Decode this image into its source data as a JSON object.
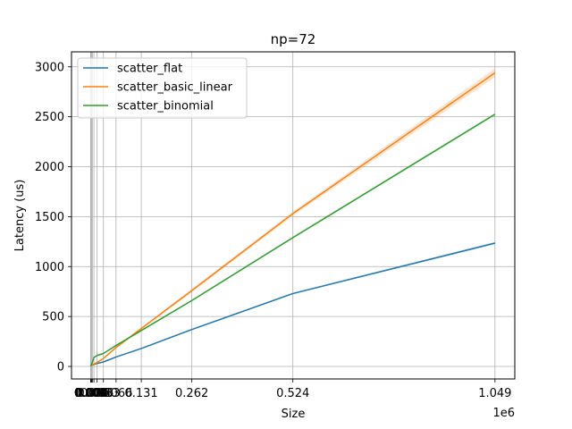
{
  "chart_data": {
    "type": "line",
    "title": "np=72",
    "xlabel": "Size",
    "ylabel": "Latency (us)",
    "x_offset_text": "1e6",
    "xlim": [
      -50000,
      1100000
    ],
    "ylim": [
      -125,
      3150
    ],
    "x": [
      1,
      2,
      4,
      8,
      16,
      32,
      64,
      128,
      256,
      512,
      1024,
      2048,
      4096,
      8192,
      16384,
      32768,
      65536,
      131072,
      262144,
      524288,
      1048576
    ],
    "xtick_values": [
      0,
      1,
      2,
      4,
      8,
      16,
      32,
      64,
      128,
      256,
      512,
      1024,
      2048,
      4096,
      8192,
      16384,
      32768,
      65536,
      131072,
      262144,
      524288,
      1048576
    ],
    "xtick_labels": [
      "0.000",
      "0.000",
      "0.000",
      "0.000",
      "0.000",
      "0.000",
      "0.000",
      "0.000",
      "0.000",
      "0.000",
      "0.001",
      "0.001",
      "0.002",
      "0.004",
      "0.008",
      "0.016",
      "0.033",
      "0.066",
      "0.131",
      "0.262",
      "0.524",
      "1.049"
    ],
    "yticks": [
      0,
      500,
      1000,
      1500,
      2000,
      2500,
      3000
    ],
    "ytick_labels": [
      "0",
      "500",
      "1000",
      "1500",
      "2000",
      "2500",
      "3000"
    ],
    "grid": true,
    "legend_position": "top-left",
    "series": [
      {
        "name": "scatter_flat",
        "color": "#1f77b4",
        "values": [
          5,
          5,
          5,
          5,
          5,
          5,
          6,
          6,
          7,
          8,
          9,
          11,
          14,
          20,
          30,
          45,
          95,
          180,
          370,
          730,
          1235
        ],
        "band": [
          2,
          2,
          2,
          2,
          2,
          2,
          2,
          2,
          2,
          2,
          2,
          2,
          2,
          2,
          3,
          3,
          4,
          5,
          6,
          8,
          12
        ]
      },
      {
        "name": "scatter_basic_linear",
        "color": "#ff7f0e",
        "values": [
          4,
          4,
          4,
          5,
          5,
          5,
          5,
          6,
          6,
          7,
          8,
          10,
          14,
          25,
          40,
          80,
          190,
          380,
          760,
          1530,
          2940
        ],
        "band": [
          2,
          2,
          2,
          2,
          2,
          2,
          2,
          2,
          2,
          2,
          2,
          2,
          3,
          3,
          4,
          5,
          8,
          12,
          15,
          20,
          45
        ]
      },
      {
        "name": "scatter_binomial",
        "color": "#2ca02c",
        "values": [
          5,
          5,
          5,
          6,
          6,
          6,
          7,
          7,
          8,
          10,
          14,
          22,
          40,
          90,
          110,
          130,
          210,
          360,
          660,
          1290,
          2525
        ],
        "band": [
          2,
          2,
          2,
          2,
          2,
          2,
          2,
          2,
          2,
          2,
          2,
          2,
          3,
          3,
          3,
          4,
          5,
          6,
          8,
          10,
          12
        ]
      }
    ]
  }
}
